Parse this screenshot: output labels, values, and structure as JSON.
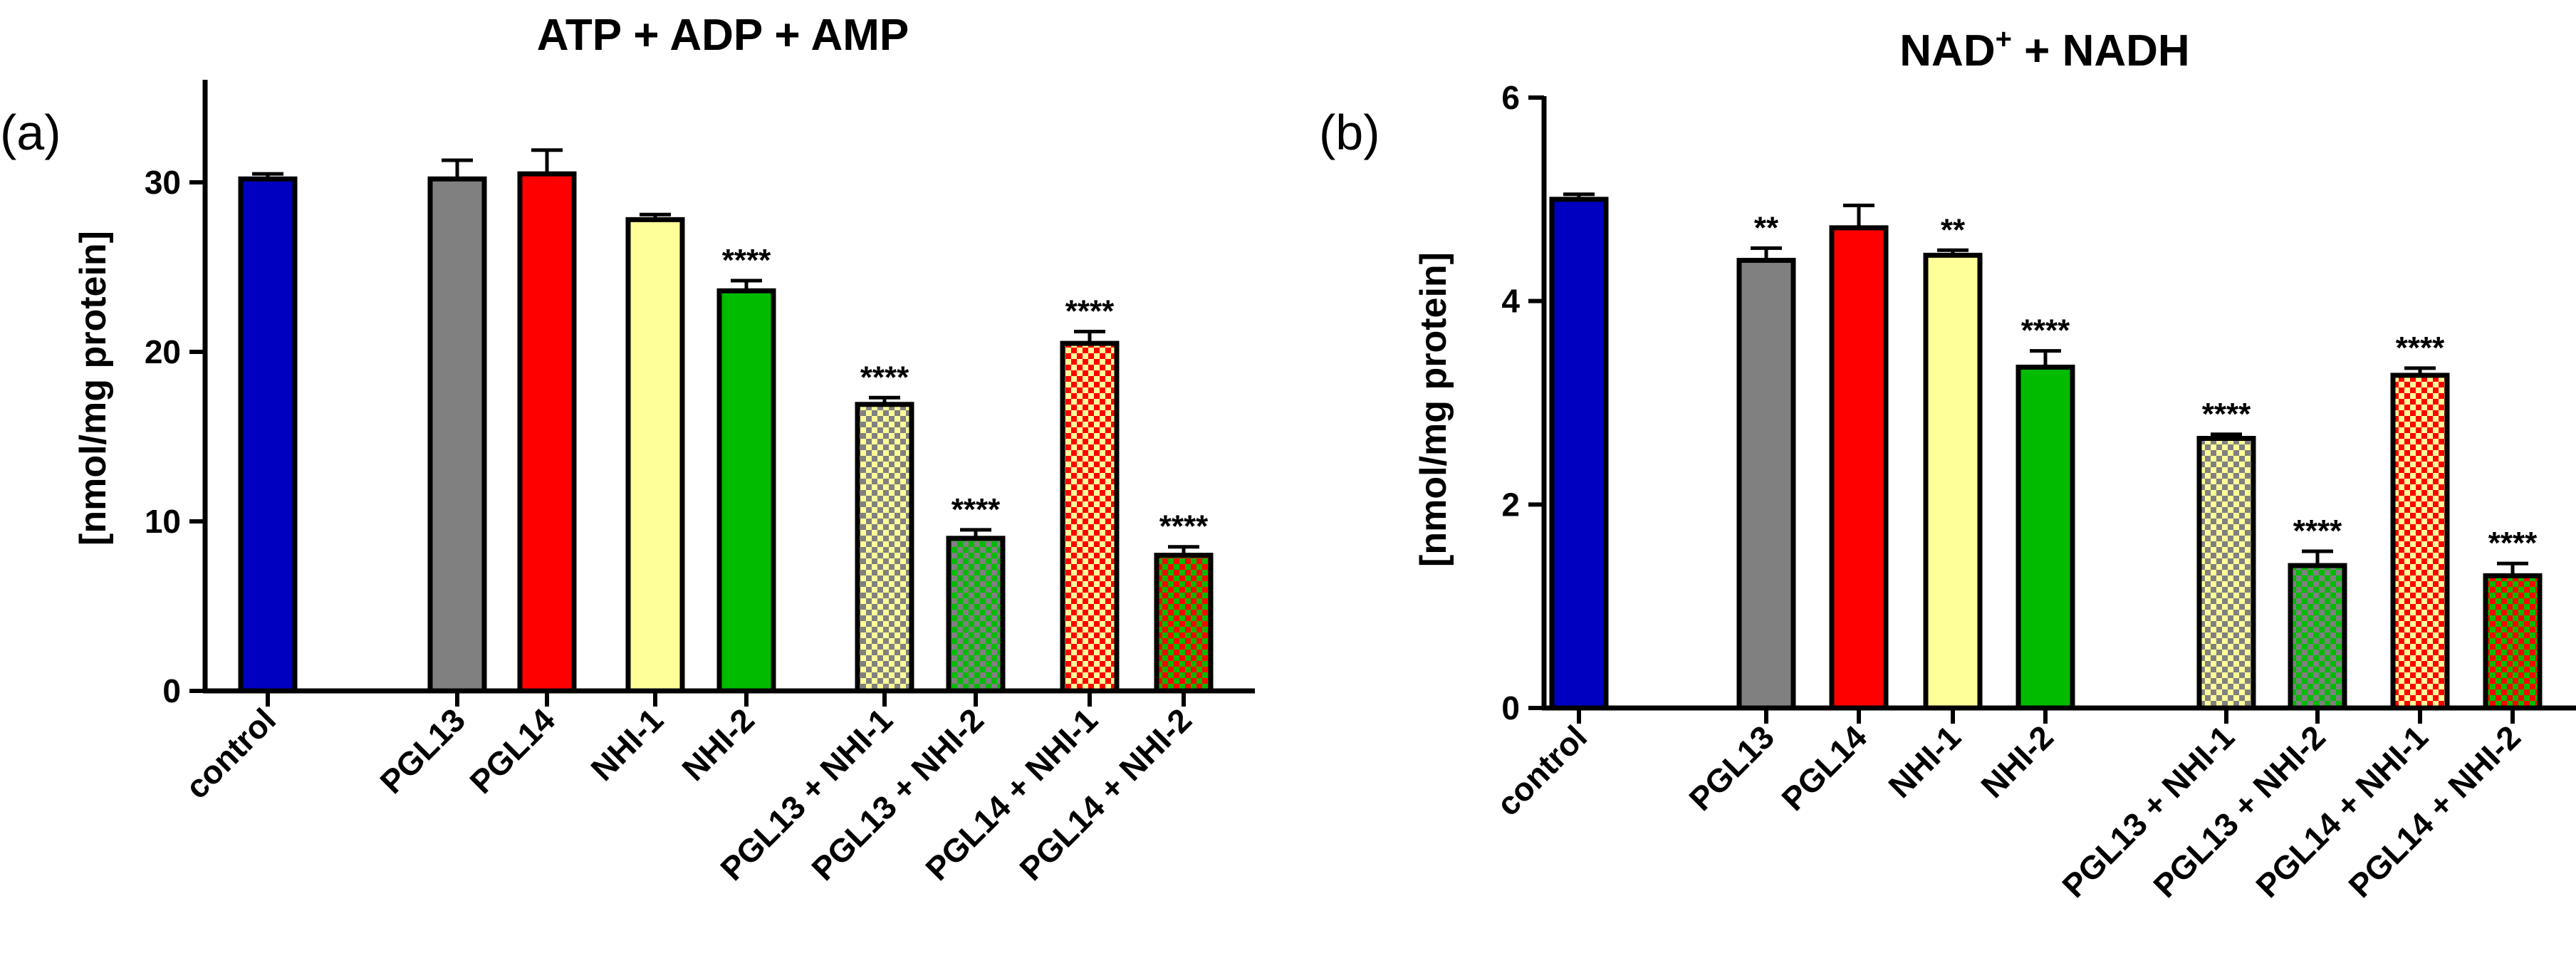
{
  "chart_data": [
    {
      "type": "bar",
      "panel_label": "(a)",
      "title": "ATP + ADP + AMP",
      "title_sup": "",
      "title_rest": "",
      "ylabel": "[nmol/mg protein]",
      "xlabel": "",
      "ylim": [
        0,
        35
      ],
      "yticks": [
        0,
        10,
        20,
        30
      ],
      "categories": [
        "control",
        "PGL13",
        "PGL14",
        "NHI-1",
        "NHI-2",
        "PGL13 + NHI-1",
        "PGL13 + NHI-2",
        "PGL14 + NHI-1",
        "PGL14 + NHI-2"
      ],
      "values": [
        30.2,
        30.2,
        30.5,
        27.8,
        23.6,
        16.9,
        9.0,
        20.5,
        8.0
      ],
      "errors": [
        0.3,
        1.1,
        1.4,
        0.3,
        0.6,
        0.4,
        0.5,
        0.7,
        0.5
      ],
      "significance": [
        "",
        "",
        "",
        "",
        "****",
        "****",
        "****",
        "****",
        "****"
      ],
      "colors": [
        "#0000c0",
        "#808080",
        "#ff0000",
        "#ffff99",
        "#00bb00",
        "#808080",
        "#00bb00",
        "#ff0000",
        "#00bb00"
      ],
      "checker_colors": [
        "",
        "",
        "",
        "",
        "",
        "#ffff99",
        "#808080",
        "#ffff99",
        "#ff0000"
      ]
    },
    {
      "type": "bar",
      "panel_label": "(b)",
      "title": "NAD",
      "title_sup": "+",
      "title_rest": " + NADH",
      "ylabel": "[nmol/mg protein]",
      "xlabel": "",
      "ylim": [
        0,
        6
      ],
      "yticks": [
        0,
        2,
        4,
        6
      ],
      "categories": [
        "control",
        "PGL13",
        "PGL14",
        "NHI-1",
        "NHI-2",
        "PGL13 + NHI-1",
        "PGL13 + NHI-2",
        "PGL14 + NHI-1",
        "PGL14 + NHI-2"
      ],
      "values": [
        5.0,
        4.4,
        4.72,
        4.45,
        3.35,
        2.65,
        1.4,
        3.27,
        1.3
      ],
      "errors": [
        0.05,
        0.12,
        0.22,
        0.05,
        0.16,
        0.04,
        0.14,
        0.07,
        0.12
      ],
      "significance": [
        "",
        "**",
        "",
        "**",
        "****",
        "****",
        "****",
        "****",
        "****"
      ],
      "colors": [
        "#0000c0",
        "#808080",
        "#ff0000",
        "#ffff99",
        "#00bb00",
        "#808080",
        "#00bb00",
        "#ff0000",
        "#00bb00"
      ],
      "checker_colors": [
        "",
        "",
        "",
        "",
        "",
        "#ffff99",
        "#808080",
        "#ffff99",
        "#ff0000"
      ]
    }
  ]
}
